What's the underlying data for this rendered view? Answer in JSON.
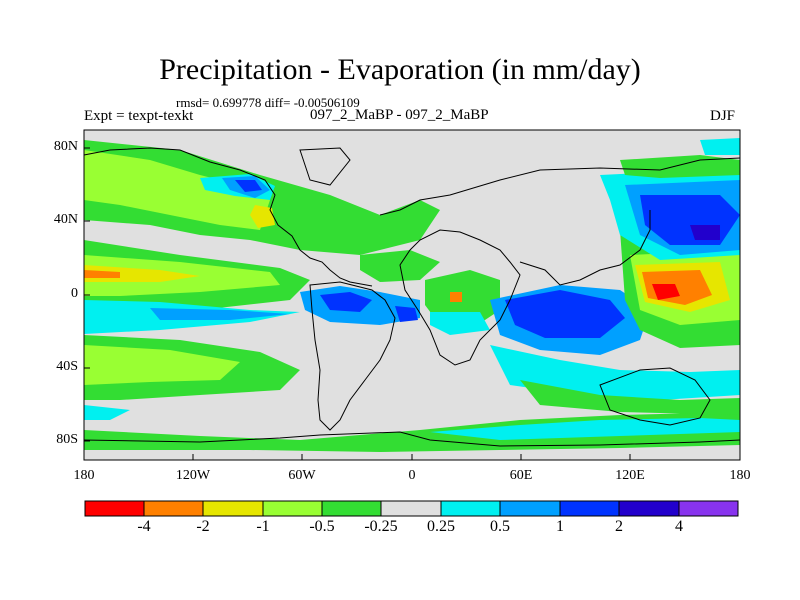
{
  "title": "Precipitation - Evaporation (in mm/day)",
  "stats_line": "rmsd= 0.699778 diff= -0.00506109",
  "expt_label": "Expt = texpt-texkt",
  "run_label": "097_2_MaBP - 097_2_MaBP",
  "season": "DJF",
  "axes": {
    "lon_ticks": [
      "180",
      "120W",
      "60W",
      "0",
      "60E",
      "120E",
      "180"
    ],
    "lat_ticks": [
      "80N",
      "40N",
      "0",
      "40S",
      "80S"
    ]
  },
  "colorbar": {
    "colors": [
      "#ff0000",
      "#ff8000",
      "#e6e600",
      "#99ff33",
      "#33dd33",
      "#e0e0e0",
      "#00f0f0",
      "#00a0ff",
      "#0033ff",
      "#2200cc",
      "#8833ee"
    ],
    "labels": [
      "-4",
      "-2",
      "-1",
      "-0.5",
      "-0.25",
      "0.25",
      "0.5",
      "1",
      "2",
      "4"
    ]
  },
  "colors": {
    "land_bg": "#e0e0e0",
    "coast": "#000000"
  }
}
